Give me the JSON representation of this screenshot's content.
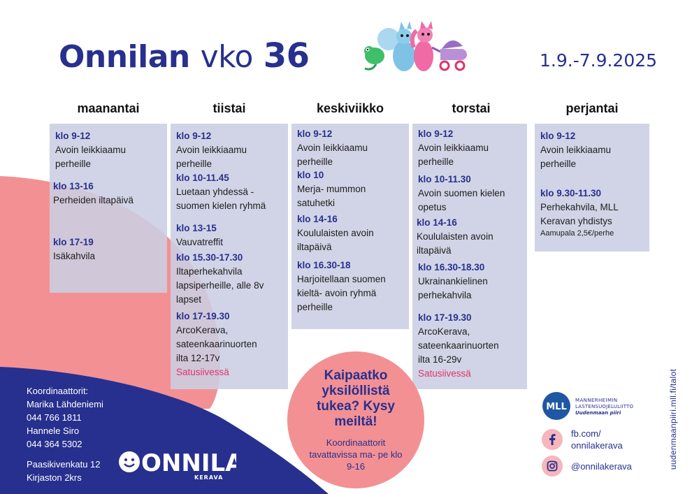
{
  "header": {
    "title_bold": "Onnilan",
    "title_light": "vko",
    "week_number": "36",
    "date_range": "1.9.-7.9.2025"
  },
  "days": [
    {
      "name": "maanantai",
      "events": [
        {
          "time": "klo 9-12",
          "lines": [
            "Avoin leikkiaamu",
            "perheille"
          ]
        },
        {
          "time": "klo 13-16",
          "lines": [
            "Perheiden iltapäivä"
          ]
        },
        {
          "time": "klo 17-19",
          "lines": [
            "Isäkahvila"
          ]
        }
      ]
    },
    {
      "name": "tiistai",
      "events": [
        {
          "time": "klo 9-12",
          "lines": [
            "Avoin leikkiaamu",
            "perheille"
          ]
        },
        {
          "time": "klo 10-11.45",
          "lines": [
            "Luetaan yhdessä -",
            "suomen kielen ryhmä"
          ]
        },
        {
          "time": "klo 13-15",
          "lines": [
            "Vauvatreffit"
          ]
        },
        {
          "time": "klo 15.30-17.30",
          "lines": [
            "Iltaperhekahvila",
            "lapsiperheille, alle 8v",
            "lapset"
          ]
        },
        {
          "time": "klo 17-19.30",
          "lines": [
            "ArcoKerava,",
            "sateenkaarinuorten",
            "ilta 12-17v"
          ],
          "note": "Satusiivessä"
        }
      ]
    },
    {
      "name": "keskiviikko",
      "events": [
        {
          "time": "klo 9-12",
          "lines": [
            "Avoin leikkiaamu",
            "perheille"
          ]
        },
        {
          "time": "klo 10",
          "lines": [
            "Merja- mummon",
            "satuhetki"
          ]
        },
        {
          "time": "klo 14-16",
          "lines": [
            "Koululaisten avoin",
            "iltapäivä"
          ]
        },
        {
          "time": "klo 16.30-18",
          "lines": [
            "Harjoitellaan suomen",
            "kieltä- avoin ryhmä",
            "perheille"
          ]
        }
      ]
    },
    {
      "name": "torstai",
      "events": [
        {
          "time": "klo 9-12",
          "lines": [
            "Avoin leikkiaamu",
            "perheille"
          ]
        },
        {
          "time": "klo 10-11.30",
          "lines": [
            "Avoin suomen kielen",
            "opetus"
          ]
        },
        {
          "time": "klo 14-16",
          "lines": [
            "Koululaisten avoin",
            "iltapäivä"
          ]
        },
        {
          "time": "klo 16.30-18.30",
          "lines": [
            "Ukrainankielinen",
            "perhekahvila"
          ]
        },
        {
          "time": "klo 17-19.30",
          "lines": [
            "ArcoKerava,",
            "sateenkaarinuorten",
            "ilta 16-29v"
          ],
          "note": "Satusiivessä"
        }
      ]
    },
    {
      "name": "perjantai",
      "events": [
        {
          "time": "klo 9-12",
          "lines": [
            "Avoin leikkiaamu",
            "perheille"
          ]
        },
        {
          "time": "klo 9.30-11.30",
          "lines": [
            "Perhekahvila, MLL",
            "Keravan yhdistys"
          ],
          "small": "Aamupala 2,5€/perhe"
        }
      ]
    }
  ],
  "bubble": {
    "headline": "Kaipaatko yksilöllistä tukea? Kysy meiltä!",
    "subtext": "Koordinaattorit tavattavissa ma- pe klo 9-16"
  },
  "contacts": {
    "label": "Koordinaattorit:",
    "person1_name": "Marika Lähdeniemi",
    "person1_phone": "044 766 1811",
    "person2_name": "Hannele Siro",
    "person2_phone": "044 364 5302",
    "address_line1": "Paasikivenkatu 12",
    "address_line2": "Kirjaston 2krs"
  },
  "onnila_logo": {
    "text": "ONNILA",
    "subtitle": "KERAVA"
  },
  "mll_logo": {
    "abbr": "MLL",
    "line1": "MANNERHEIMIN",
    "line2": "LASTENSUOJELULIITTO",
    "line3": "Uudenmaan piiri"
  },
  "social": {
    "facebook_line1": "fb.com/",
    "facebook_line2": "onnilakerava",
    "instagram": "@onnilakerava",
    "facebook_icon": "facebook-icon",
    "instagram_icon": "instagram-icon"
  },
  "side_url": "uudenmaanpiiri.mll.fi/talot",
  "colors": {
    "navy": "#27308e",
    "coral": "#f39094",
    "column_bg": "#cbcee2",
    "pink_text": "#e0336a"
  }
}
